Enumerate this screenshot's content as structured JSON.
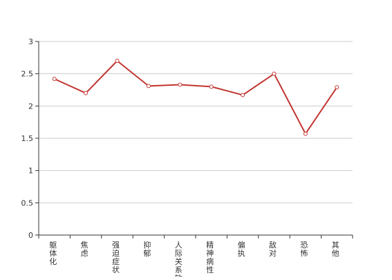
{
  "colors": {
    "series": "#c23531",
    "axis": "#333333",
    "grid": "#cccccc",
    "point_fill": "#ffffff"
  },
  "chart_data": {
    "type": "line",
    "title": "",
    "xlabel": "",
    "ylabel": "",
    "categories": [
      "躯体化",
      "焦虑",
      "强迫症状",
      "抑郁",
      "人际关系敏感",
      "精神病性",
      "偏执",
      "敌对",
      "恐怖",
      "其他"
    ],
    "series": [
      {
        "values": [
          2.42,
          2.2,
          2.7,
          2.31,
          2.33,
          2.3,
          2.17,
          2.5,
          1.57,
          2.29
        ]
      }
    ],
    "ylim": [
      0,
      3
    ],
    "yticks": [
      "0",
      "0.5",
      "1",
      "1.5",
      "2",
      "2.5",
      "3"
    ],
    "grid": true,
    "legend": "none"
  }
}
